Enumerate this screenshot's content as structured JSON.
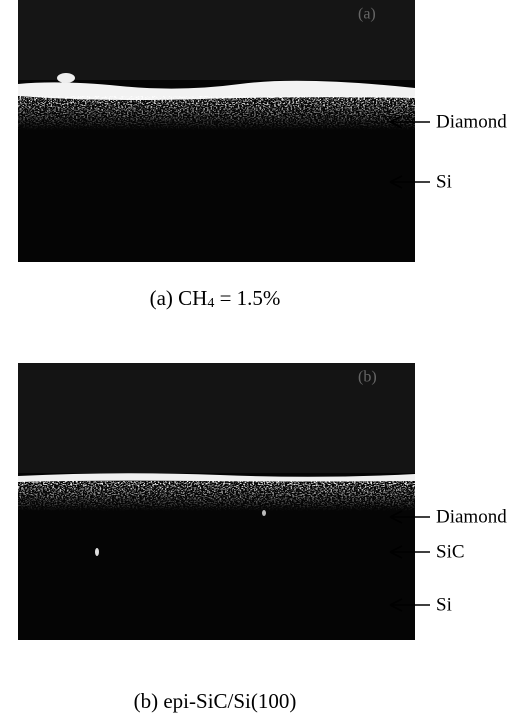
{
  "panels": [
    {
      "tag": "(a)",
      "labels": [
        "Diamond",
        "Si"
      ],
      "caption": {
        "prefix": "(a) CH",
        "subscript": "4",
        "suffix": " = 1.5%"
      }
    },
    {
      "tag": "(b)",
      "labels": [
        "Diamond",
        "SiC",
        "Si"
      ],
      "caption": {
        "text": "(b) epi-SiC/Si(100)"
      }
    }
  ]
}
